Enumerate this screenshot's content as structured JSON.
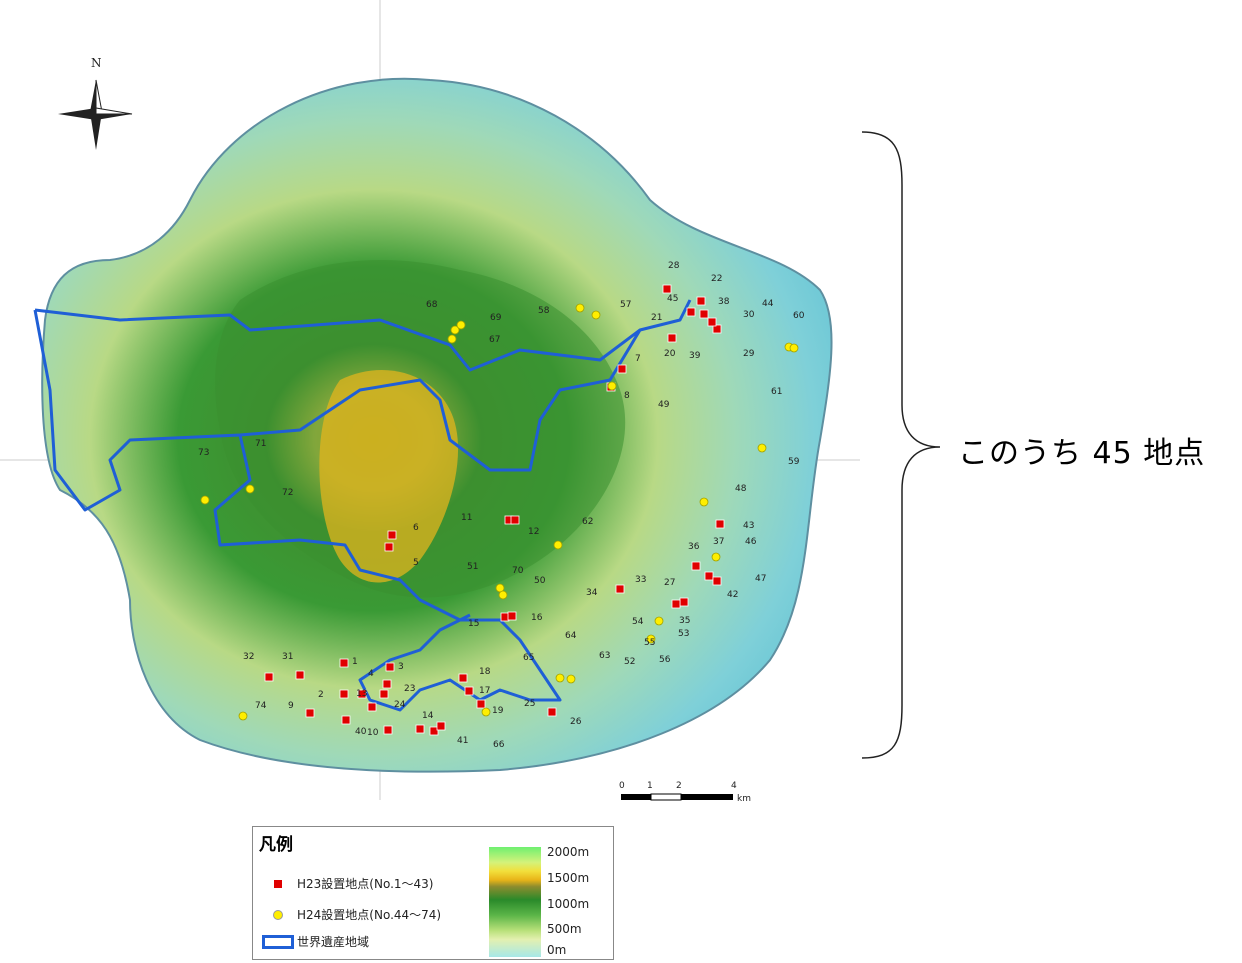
{
  "map": {
    "north_label": "N",
    "brace_label": "このうち 45 地点",
    "scale_ticks": [
      "0",
      "1",
      "2",
      "4"
    ],
    "scale_unit": "km",
    "colors": {
      "h23_marker": "#e00000",
      "h24_marker": "#ffee00",
      "world_heritage_boundary": "#1f5fd6"
    },
    "site_labels": [
      "1",
      "2",
      "3",
      "4",
      "5",
      "6",
      "7",
      "8",
      "9",
      "10",
      "11",
      "12",
      "13",
      "14",
      "15",
      "16",
      "17",
      "18",
      "19",
      "20",
      "21",
      "22",
      "23",
      "24",
      "25",
      "26",
      "27",
      "28",
      "29",
      "30",
      "31",
      "32",
      "33",
      "34",
      "35",
      "36",
      "37",
      "38",
      "39",
      "40",
      "41",
      "42",
      "43",
      "44",
      "45",
      "46",
      "47",
      "48",
      "49",
      "50",
      "51",
      "52",
      "53",
      "54",
      "55",
      "56",
      "57",
      "58",
      "59",
      "60",
      "61",
      "62",
      "63",
      "64",
      "65",
      "66",
      "67",
      "68",
      "69",
      "70",
      "71",
      "72",
      "73",
      "74"
    ]
  },
  "legend": {
    "title": "凡例",
    "h23_label": "H23設置地点(No.1～43)",
    "h24_label": "H24設置地点(No.44～74)",
    "boundary_label": "世界遺産地域",
    "elevation_ticks": [
      "2000m",
      "1500m",
      "1000m",
      "500m",
      "0m"
    ]
  }
}
